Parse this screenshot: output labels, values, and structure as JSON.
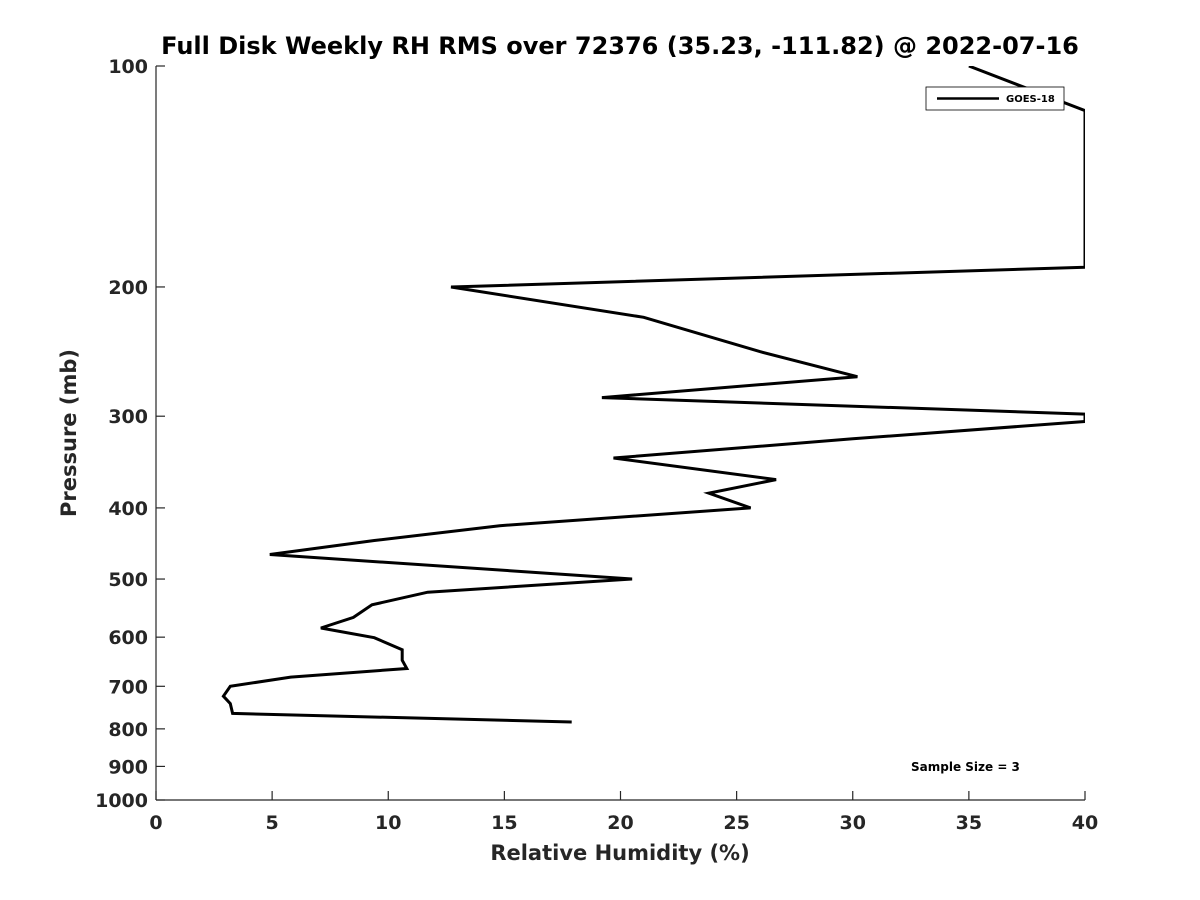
{
  "chart_data": {
    "type": "line",
    "title": "Full Disk Weekly RH RMS over 72376 (35.23, -111.82) @ 2022-07-16",
    "xlabel": "Relative Humidity (%)",
    "ylabel": "Pressure (mb)",
    "xlim": [
      0,
      40
    ],
    "ylim": [
      100,
      1000
    ],
    "y_scale": "log",
    "y_reversed": true,
    "grid": false,
    "legend_position": "top-right",
    "x_ticks": [
      "0",
      "5",
      "10",
      "15",
      "20",
      "25",
      "30",
      "35",
      "40"
    ],
    "y_ticks": [
      "100",
      "200",
      "300",
      "400",
      "500",
      "600",
      "700",
      "800",
      "900",
      "1000"
    ],
    "annotation": "Sample Size = 3",
    "series": [
      {
        "name": "GOES-18",
        "color": "#000000",
        "points": [
          {
            "x": 35.0,
            "pressure": 100
          },
          {
            "x": 40.0,
            "pressure": 115
          },
          {
            "x": 40.0,
            "pressure": 188
          },
          {
            "x": 12.7,
            "pressure": 200
          },
          {
            "x": 21.0,
            "pressure": 220
          },
          {
            "x": 26.0,
            "pressure": 245
          },
          {
            "x": 30.2,
            "pressure": 265
          },
          {
            "x": 19.2,
            "pressure": 283
          },
          {
            "x": 40.0,
            "pressure": 298
          },
          {
            "x": 40.0,
            "pressure": 305
          },
          {
            "x": 30.0,
            "pressure": 322
          },
          {
            "x": 19.7,
            "pressure": 342
          },
          {
            "x": 26.7,
            "pressure": 366
          },
          {
            "x": 23.8,
            "pressure": 382
          },
          {
            "x": 25.6,
            "pressure": 400
          },
          {
            "x": 14.8,
            "pressure": 423
          },
          {
            "x": 9.4,
            "pressure": 443
          },
          {
            "x": 4.9,
            "pressure": 463
          },
          {
            "x": 20.5,
            "pressure": 500
          },
          {
            "x": 11.7,
            "pressure": 521
          },
          {
            "x": 9.3,
            "pressure": 542
          },
          {
            "x": 8.5,
            "pressure": 564
          },
          {
            "x": 7.1,
            "pressure": 583
          },
          {
            "x": 9.4,
            "pressure": 601
          },
          {
            "x": 10.6,
            "pressure": 624
          },
          {
            "x": 10.6,
            "pressure": 645
          },
          {
            "x": 10.8,
            "pressure": 662
          },
          {
            "x": 5.8,
            "pressure": 680
          },
          {
            "x": 3.2,
            "pressure": 700
          },
          {
            "x": 2.9,
            "pressure": 722
          },
          {
            "x": 3.2,
            "pressure": 739
          },
          {
            "x": 3.3,
            "pressure": 762
          },
          {
            "x": 17.9,
            "pressure": 783
          }
        ]
      }
    ]
  }
}
